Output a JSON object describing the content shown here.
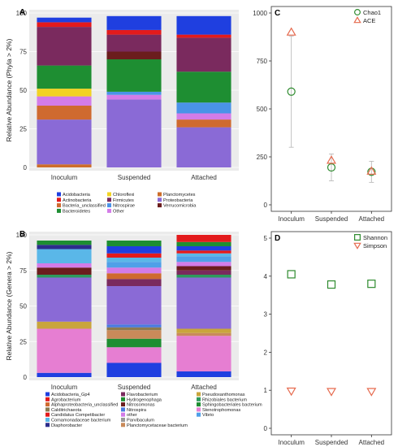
{
  "chart_data": [
    {
      "panel": "A",
      "type": "bar",
      "stacked": true,
      "categories": [
        "Inoculum",
        "Suspended",
        "Attached"
      ],
      "ylabel": "Relative Abundance (Phyla > 2%)",
      "ylim": [
        0,
        100
      ],
      "yticks": [
        0,
        25,
        50,
        75,
        100
      ],
      "legend": "bottom",
      "series": [
        {
          "name": "Planctomycetes",
          "color": "#cd6d2a",
          "values": [
            2,
            0,
            0
          ]
        },
        {
          "name": "Proteobacteria",
          "color": "#8a6ad6",
          "values": [
            29,
            44,
            26
          ]
        },
        {
          "name": "Bacteria_unclassified",
          "color": "#cf6a2f",
          "values": [
            9,
            0,
            5
          ]
        },
        {
          "name": "Other",
          "color": "#d37ce8",
          "values": [
            6,
            3,
            4
          ]
        },
        {
          "name": "Chloroflexi",
          "color": "#f2d324",
          "values": [
            5,
            0,
            0
          ]
        },
        {
          "name": "Nitrospirae",
          "color": "#4a93e8",
          "values": [
            0,
            2,
            7
          ]
        },
        {
          "name": "Bacteroidetes",
          "color": "#1e8e32",
          "values": [
            15,
            21,
            20
          ]
        },
        {
          "name": "Verrucomicrobia",
          "color": "#6b1d1d",
          "values": [
            0,
            5,
            0
          ]
        },
        {
          "name": "Firmicutes",
          "color": "#7a2a5e",
          "values": [
            25,
            11,
            22
          ]
        },
        {
          "name": "Actinobacteria",
          "color": "#e31a1c",
          "values": [
            3,
            3,
            2
          ]
        },
        {
          "name": "Acidobacteria",
          "color": "#1f3fe0",
          "values": [
            3,
            9,
            12
          ]
        }
      ]
    },
    {
      "panel": "B",
      "type": "bar",
      "stacked": true,
      "categories": [
        "Inoculum",
        "Suspended",
        "Attached"
      ],
      "ylabel": "Relative Abundance (Genera > 2%)",
      "ylim": [
        0,
        100
      ],
      "yticks": [
        0,
        25,
        50,
        75,
        100
      ],
      "legend": "bottom",
      "series": [
        {
          "name": "Acidobacteria_Gp4",
          "color": "#1f3fe0",
          "values": [
            3,
            10,
            4
          ]
        },
        {
          "name": "Stenotrophomonas",
          "color": "#e67ed2",
          "values": [
            31,
            11,
            25
          ]
        },
        {
          "name": "Sphingobacteriales bacterium",
          "color": "#1e8e32",
          "values": [
            0,
            6,
            0
          ]
        },
        {
          "name": "Planctomycetaceae bacterium",
          "color": "#c98a5a",
          "values": [
            0,
            6,
            2
          ]
        },
        {
          "name": "Calditrichaeota",
          "color": "#8c7a50",
          "values": [
            0,
            2,
            0
          ]
        },
        {
          "name": "Nitrospira",
          "color": "#4a7be0",
          "values": [
            0,
            2,
            0
          ]
        },
        {
          "name": "Pseudoxanthomonas",
          "color": "#c9a53c",
          "values": [
            5,
            0,
            3
          ]
        },
        {
          "name": "Proteobacteria",
          "color": "#8a6ad6",
          "values": [
            31,
            27,
            36
          ]
        },
        {
          "name": "Rhizobiales bacterium",
          "color": "#2d9a5c",
          "values": [
            2,
            0,
            2
          ]
        },
        {
          "name": "Flavobacterium",
          "color": "#7a2a5e",
          "values": [
            0,
            5,
            3
          ]
        },
        {
          "name": "Nitrosomonas",
          "color": "#6b1d1d",
          "values": [
            5,
            0,
            3
          ]
        },
        {
          "name": "Alphaproteobacteria_unclassified",
          "color": "#cf6a2f",
          "values": [
            0,
            4,
            0
          ]
        },
        {
          "name": "other",
          "color": "#d37ce8",
          "values": [
            3,
            4,
            3
          ]
        },
        {
          "name": "Vibrio",
          "color": "#4fa0e8",
          "values": [
            0,
            4,
            4
          ]
        },
        {
          "name": "Comamonadaceae bacterium",
          "color": "#5ab7e8",
          "values": [
            10,
            3,
            2
          ]
        },
        {
          "name": "Agrobacterium",
          "color": "#e31a1c",
          "values": [
            0,
            3,
            2
          ]
        },
        {
          "name": "Calditrichaeota",
          "color": "#1f3fe0",
          "values": [
            0,
            5,
            3
          ]
        },
        {
          "name": "Diaphorobacter",
          "color": "#2d2d8c",
          "values": [
            3,
            0,
            0
          ]
        },
        {
          "name": "Hydrogenophaga",
          "color": "#1e8e32",
          "values": [
            3,
            4,
            3
          ]
        },
        {
          "name": "Candidatus Competibacter",
          "color": "#e31a1c",
          "values": [
            0,
            0,
            5
          ]
        }
      ]
    },
    {
      "panel": "C",
      "type": "scatter",
      "categories": [
        "Inoculum",
        "Suspended",
        "Attached"
      ],
      "ylim": [
        0,
        1000
      ],
      "yticks": [
        0,
        250,
        500,
        750,
        1000
      ],
      "legend": "top-right",
      "series": [
        {
          "name": "Chao1",
          "color": "#2e8b2e",
          "marker": "circle",
          "values": [
            590,
            195,
            172
          ],
          "err": [
            290,
            70,
            55
          ]
        },
        {
          "name": "ACE",
          "color": "#e66a4e",
          "marker": "triangle-up",
          "values": [
            900,
            232,
            175
          ],
          "err": [
            0,
            0,
            0
          ]
        }
      ]
    },
    {
      "panel": "D",
      "type": "scatter",
      "categories": [
        "Inoculum",
        "Suspended",
        "Attached"
      ],
      "ylim": [
        0,
        5
      ],
      "yticks": [
        0,
        1,
        2,
        3,
        4,
        5
      ],
      "legend": "top-right",
      "series": [
        {
          "name": "Shannon",
          "color": "#2e8b2e",
          "marker": "square",
          "values": [
            4.05,
            3.78,
            3.8
          ]
        },
        {
          "name": "Simpson",
          "color": "#e66a4e",
          "marker": "triangle-down",
          "values": [
            0.98,
            0.97,
            0.97
          ]
        }
      ]
    }
  ],
  "legend_a": [
    "Acidobacteria",
    "Actinobacteria",
    "Bacteria_unclassified",
    "Bacteroidetes",
    "Chloroflexi",
    "Firmicutes",
    "Nitrospirae",
    "Other",
    "Planctomycetes",
    "Proteobacteria",
    "Verrucomicrobia"
  ],
  "legend_b": [
    "Acidobacteria_Gp4",
    "Agrobacterium",
    "Alphaproteobacteria_unclassified",
    "Calditrichaeota",
    "Candidatus Competibacter",
    "Comamonadaceae bacterium",
    "Diaphorobacter",
    "Flavobacterium",
    "Hydrogenophaga",
    "Nitrosomonas",
    "Nitrospira",
    "other",
    "Parvibaculum",
    "Planctomycetaceae bacterium",
    "Pseudoxanthomonas",
    "Rhizobiales bacterium",
    "Sphingobacteriales bacterium",
    "Stenotrophomonas",
    "Vibrio"
  ]
}
